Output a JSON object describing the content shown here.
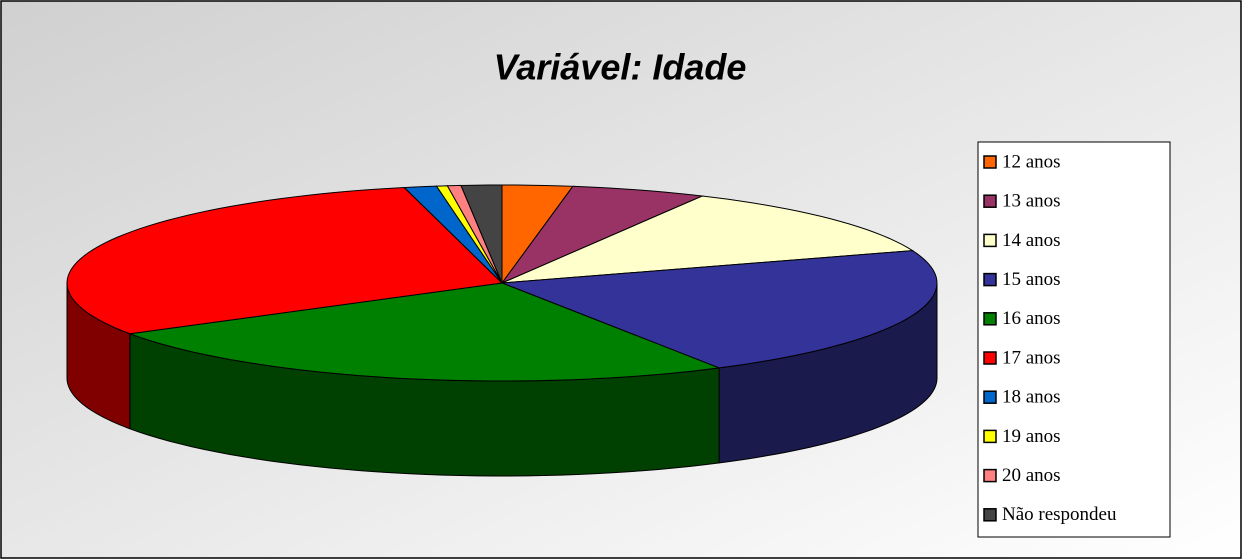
{
  "chart_data": {
    "type": "pie3d",
    "title": "Variável: Idade",
    "categories": [
      "12 anos",
      "13 anos",
      "14 anos",
      "15 anos",
      "16 anos",
      "17 anos",
      "18 anos",
      "19 anos",
      "20 anos",
      "Não respondeu"
    ],
    "values": [
      2.6,
      5,
      12,
      22,
      24.6,
      30,
      1.2,
      0.4,
      0.5,
      1.5
    ],
    "colors": [
      "#ff6600",
      "#993366",
      "#ffffcc",
      "#333399",
      "#008000",
      "#ff0000",
      "#0066cc",
      "#ffff00",
      "#ff8080",
      "#444444"
    ],
    "legend": "right"
  }
}
